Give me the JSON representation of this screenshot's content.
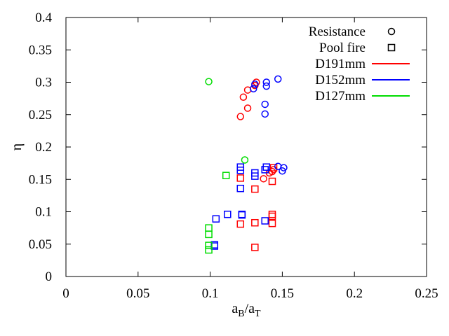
{
  "chart_data": {
    "type": "scatter",
    "title": "",
    "xlabel": "aB/aT",
    "xlabel_main": "a",
    "xlabel_sub1": "B",
    "xlabel_sep": "/a",
    "xlabel_sub2": "T",
    "ylabel": "η",
    "xlim": [
      0,
      0.25
    ],
    "ylim": [
      0,
      0.4
    ],
    "x_ticks": [
      "0",
      "0.05",
      "0.1",
      "0.15",
      "0.2",
      "0.25"
    ],
    "x_tick_values": [
      0,
      0.05,
      0.1,
      0.15,
      0.2,
      0.25
    ],
    "y_ticks": [
      "0",
      "0.05",
      "0.1",
      "0.15",
      "0.2",
      "0.25",
      "0.3",
      "0.35",
      "0.4"
    ],
    "y_tick_values": [
      0,
      0.05,
      0.1,
      0.15,
      0.2,
      0.25,
      0.3,
      0.35,
      0.4
    ],
    "grid": false,
    "legend_position": "top-right",
    "legend": [
      {
        "label": "Resistance",
        "kind": "marker",
        "marker": "circle"
      },
      {
        "label": "Pool fire",
        "kind": "marker",
        "marker": "square"
      },
      {
        "label": "D191mm",
        "kind": "line",
        "color": "#ff0000"
      },
      {
        "label": "D152mm",
        "kind": "line",
        "color": "#0000ff"
      },
      {
        "label": "D127mm",
        "kind": "line",
        "color": "#00dd00"
      }
    ],
    "series": [
      {
        "name": "D191mm",
        "marker": "circle",
        "color": "#ff0000",
        "points": [
          [
            0.121,
            0.247
          ],
          [
            0.123,
            0.277
          ],
          [
            0.126,
            0.26
          ],
          [
            0.126,
            0.288
          ],
          [
            0.131,
            0.295
          ],
          [
            0.132,
            0.3
          ],
          [
            0.137,
            0.151
          ],
          [
            0.141,
            0.16
          ],
          [
            0.143,
            0.162
          ],
          [
            0.144,
            0.165
          ]
        ]
      },
      {
        "name": "D191mm",
        "marker": "square",
        "color": "#ff0000",
        "points": [
          [
            0.121,
            0.152
          ],
          [
            0.121,
            0.081
          ],
          [
            0.131,
            0.135
          ],
          [
            0.131,
            0.083
          ],
          [
            0.131,
            0.045
          ],
          [
            0.143,
            0.147
          ],
          [
            0.143,
            0.096
          ],
          [
            0.143,
            0.093
          ],
          [
            0.143,
            0.082
          ],
          [
            0.144,
            0.168
          ]
        ]
      },
      {
        "name": "D152mm",
        "marker": "circle",
        "color": "#0000ff",
        "points": [
          [
            0.13,
            0.29
          ],
          [
            0.131,
            0.297
          ],
          [
            0.138,
            0.251
          ],
          [
            0.138,
            0.266
          ],
          [
            0.139,
            0.294
          ],
          [
            0.139,
            0.3
          ],
          [
            0.147,
            0.305
          ],
          [
            0.147,
            0.17
          ],
          [
            0.15,
            0.163
          ],
          [
            0.151,
            0.168
          ]
        ]
      },
      {
        "name": "D152mm",
        "marker": "square",
        "color": "#0000ff",
        "points": [
          [
            0.103,
            0.049
          ],
          [
            0.103,
            0.047
          ],
          [
            0.104,
            0.089
          ],
          [
            0.112,
            0.096
          ],
          [
            0.121,
            0.136
          ],
          [
            0.121,
            0.164
          ],
          [
            0.121,
            0.169
          ],
          [
            0.122,
            0.096
          ],
          [
            0.122,
            0.095
          ],
          [
            0.131,
            0.155
          ],
          [
            0.131,
            0.16
          ],
          [
            0.138,
            0.086
          ],
          [
            0.138,
            0.165
          ],
          [
            0.139,
            0.169
          ]
        ]
      },
      {
        "name": "D127mm",
        "marker": "circle",
        "color": "#00dd00",
        "points": [
          [
            0.099,
            0.301
          ],
          [
            0.124,
            0.18
          ]
        ]
      },
      {
        "name": "D127mm",
        "marker": "square",
        "color": "#00dd00",
        "points": [
          [
            0.099,
            0.075
          ],
          [
            0.099,
            0.065
          ],
          [
            0.099,
            0.048
          ],
          [
            0.099,
            0.041
          ],
          [
            0.111,
            0.156
          ]
        ]
      }
    ]
  }
}
